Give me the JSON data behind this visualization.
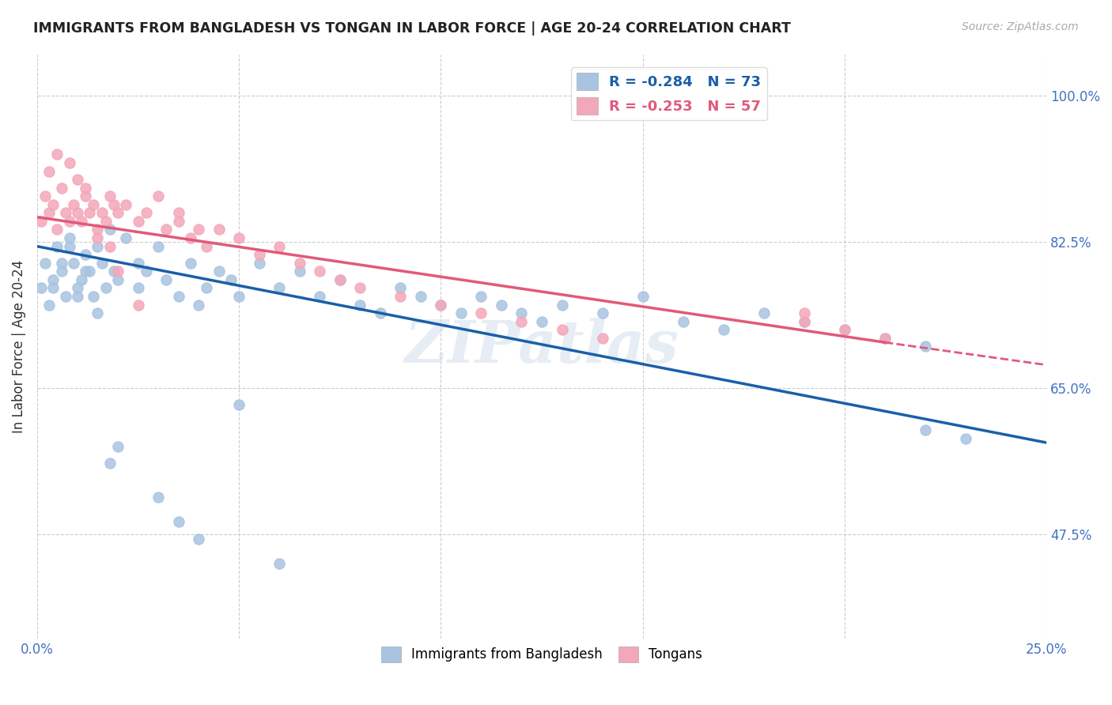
{
  "title": "IMMIGRANTS FROM BANGLADESH VS TONGAN IN LABOR FORCE | AGE 20-24 CORRELATION CHART",
  "source": "Source: ZipAtlas.com",
  "ylabel": "In Labor Force | Age 20-24",
  "xlim": [
    0.0,
    0.25
  ],
  "ylim": [
    0.35,
    1.05
  ],
  "yticks": [
    0.475,
    0.65,
    0.825,
    1.0
  ],
  "yticklabels": [
    "47.5%",
    "65.0%",
    "82.5%",
    "100.0%"
  ],
  "xticks": [
    0.0,
    0.05,
    0.1,
    0.15,
    0.2,
    0.25
  ],
  "xticklabels": [
    "0.0%",
    "",
    "",
    "",
    "",
    "25.0%"
  ],
  "bangladesh_color": "#a8c4e0",
  "tongan_color": "#f4a7b9",
  "bangladesh_line_color": "#1a5fa8",
  "tongan_line_color": "#e05a7a",
  "R_bangladesh": -0.284,
  "N_bangladesh": 73,
  "R_tongan": -0.253,
  "N_tongan": 57,
  "legend_label_bangladesh": "Immigrants from Bangladesh",
  "legend_label_tongan": "Tongans",
  "watermark": "ZIPatlas",
  "bg_color": "#ffffff",
  "grid_color": "#cccccc",
  "bangladesh_x": [
    0.001,
    0.002,
    0.003,
    0.004,
    0.005,
    0.006,
    0.007,
    0.008,
    0.009,
    0.01,
    0.011,
    0.012,
    0.013,
    0.014,
    0.015,
    0.016,
    0.017,
    0.018,
    0.019,
    0.02,
    0.022,
    0.025,
    0.027,
    0.03,
    0.032,
    0.035,
    0.038,
    0.04,
    0.042,
    0.045,
    0.048,
    0.05,
    0.055,
    0.06,
    0.065,
    0.07,
    0.075,
    0.08,
    0.085,
    0.09,
    0.095,
    0.1,
    0.105,
    0.11,
    0.115,
    0.12,
    0.125,
    0.13,
    0.14,
    0.15,
    0.16,
    0.17,
    0.18,
    0.19,
    0.2,
    0.21,
    0.22,
    0.004,
    0.006,
    0.008,
    0.01,
    0.012,
    0.015,
    0.018,
    0.02,
    0.025,
    0.03,
    0.035,
    0.04,
    0.05,
    0.06,
    0.22,
    0.23
  ],
  "bangladesh_y": [
    0.77,
    0.8,
    0.75,
    0.78,
    0.82,
    0.79,
    0.76,
    0.83,
    0.8,
    0.77,
    0.78,
    0.81,
    0.79,
    0.76,
    0.82,
    0.8,
    0.77,
    0.84,
    0.79,
    0.78,
    0.83,
    0.8,
    0.79,
    0.82,
    0.78,
    0.76,
    0.8,
    0.75,
    0.77,
    0.79,
    0.78,
    0.76,
    0.8,
    0.77,
    0.79,
    0.76,
    0.78,
    0.75,
    0.74,
    0.77,
    0.76,
    0.75,
    0.74,
    0.76,
    0.75,
    0.74,
    0.73,
    0.75,
    0.74,
    0.76,
    0.73,
    0.72,
    0.74,
    0.73,
    0.72,
    0.71,
    0.7,
    0.77,
    0.8,
    0.82,
    0.76,
    0.79,
    0.74,
    0.56,
    0.58,
    0.77,
    0.52,
    0.49,
    0.47,
    0.63,
    0.44,
    0.6,
    0.59
  ],
  "tongan_x": [
    0.001,
    0.002,
    0.003,
    0.004,
    0.005,
    0.006,
    0.007,
    0.008,
    0.009,
    0.01,
    0.011,
    0.012,
    0.013,
    0.014,
    0.015,
    0.016,
    0.017,
    0.018,
    0.019,
    0.02,
    0.022,
    0.025,
    0.027,
    0.03,
    0.032,
    0.035,
    0.038,
    0.04,
    0.042,
    0.045,
    0.05,
    0.055,
    0.06,
    0.065,
    0.07,
    0.075,
    0.08,
    0.09,
    0.1,
    0.11,
    0.12,
    0.13,
    0.14,
    0.19,
    0.2,
    0.21,
    0.003,
    0.005,
    0.008,
    0.01,
    0.012,
    0.015,
    0.018,
    0.02,
    0.025,
    0.035,
    0.19
  ],
  "tongan_y": [
    0.85,
    0.88,
    0.86,
    0.87,
    0.84,
    0.89,
    0.86,
    0.85,
    0.87,
    0.86,
    0.85,
    0.88,
    0.86,
    0.87,
    0.84,
    0.86,
    0.85,
    0.88,
    0.87,
    0.86,
    0.87,
    0.85,
    0.86,
    0.88,
    0.84,
    0.85,
    0.83,
    0.84,
    0.82,
    0.84,
    0.83,
    0.81,
    0.82,
    0.8,
    0.79,
    0.78,
    0.77,
    0.76,
    0.75,
    0.74,
    0.73,
    0.72,
    0.71,
    0.73,
    0.72,
    0.71,
    0.91,
    0.93,
    0.92,
    0.9,
    0.89,
    0.83,
    0.82,
    0.79,
    0.75,
    0.86,
    0.74
  ]
}
